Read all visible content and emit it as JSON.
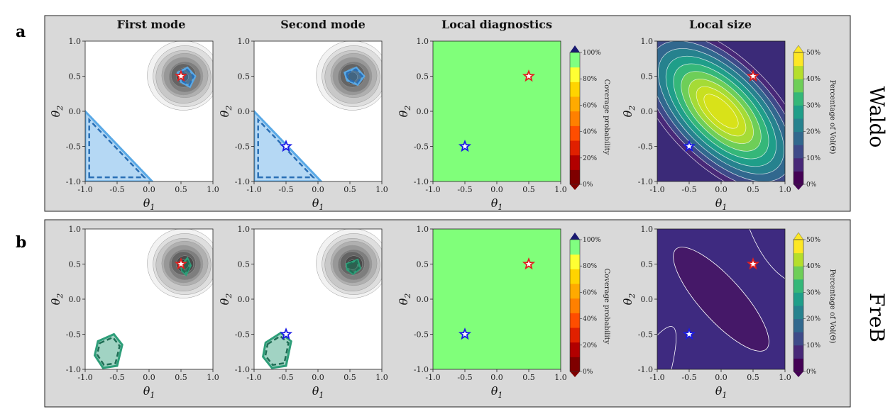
{
  "figure": {
    "column_titles": [
      "First mode",
      "Second mode",
      "Local diagnostics",
      "Local size"
    ],
    "row_letters": [
      "a",
      "b"
    ],
    "methods": [
      "Waldo",
      "FreB"
    ],
    "axis_labels": {
      "x": "θ1",
      "y": "θ2",
      "x_base": "θ",
      "x_sub": "1",
      "y_base": "θ",
      "y_sub": "2"
    },
    "colorbars": {
      "coverage": {
        "title": "Coverage probability",
        "tick_labels": [
          "100%",
          "80%",
          "60%",
          "40%",
          "20%",
          "0%"
        ],
        "colors": [
          "#7f0000",
          "#b20000",
          "#e02000",
          "#ff4d00",
          "#ff8000",
          "#ffaa00",
          "#ffd400",
          "#ffff33",
          "#80ff80",
          "#191970"
        ]
      },
      "size": {
        "title": "Percentage of Vol(Θ)",
        "tick_labels": [
          "50%",
          "40%",
          "30%",
          "20%",
          "10%",
          "0%"
        ],
        "colors": [
          "#440154",
          "#482878",
          "#3e4a89",
          "#31688e",
          "#26828e",
          "#1f9e89",
          "#35b779",
          "#6ece58",
          "#b5de2b",
          "#fde725"
        ]
      }
    }
  },
  "chart_data": [
    {
      "type": "contour",
      "row": "Waldo",
      "panel": "First mode",
      "xlim": [
        -1,
        1
      ],
      "ylim": [
        -1,
        1
      ],
      "xticks": [
        "-1.0",
        "-0.5",
        "0.0",
        "0.5",
        "1.0"
      ],
      "yticks": [
        "1.0",
        "0.5",
        "0.0",
        "-0.5",
        "-1.0"
      ],
      "posterior_center": [
        0.55,
        0.5
      ],
      "true_parameter": [
        0.5,
        0.5
      ],
      "marker_color": "red",
      "region_color": "#5aa9e6",
      "regions": [
        [
          [
            -1,
            -1
          ],
          [
            0.05,
            -1
          ],
          [
            -1,
            0.0
          ]
        ],
        [
          [
            0.45,
            0.55
          ],
          [
            0.6,
            0.62
          ],
          [
            0.72,
            0.5
          ],
          [
            0.64,
            0.35
          ],
          [
            0.5,
            0.42
          ]
        ]
      ]
    },
    {
      "type": "contour",
      "row": "Waldo",
      "panel": "Second mode",
      "xlim": [
        -1,
        1
      ],
      "ylim": [
        -1,
        1
      ],
      "xticks": [
        "-1.0",
        "-0.5",
        "0.0",
        "0.5",
        "1.0"
      ],
      "yticks": [
        "1.0",
        "0.5",
        "0.0",
        "-0.5",
        "-1.0"
      ],
      "posterior_center": [
        0.55,
        0.5
      ],
      "true_parameter": [
        -0.5,
        -0.5
      ],
      "marker_color": "blue",
      "region_color": "#5aa9e6",
      "regions": [
        [
          [
            -1,
            -1
          ],
          [
            0.05,
            -1
          ],
          [
            -1,
            0.0
          ]
        ],
        [
          [
            0.42,
            0.55
          ],
          [
            0.6,
            0.62
          ],
          [
            0.72,
            0.5
          ],
          [
            0.62,
            0.38
          ],
          [
            0.46,
            0.44
          ]
        ]
      ]
    },
    {
      "type": "heatmap",
      "row": "Waldo",
      "panel": "Local diagnostics",
      "xlim": [
        -1,
        1
      ],
      "ylim": [
        -1,
        1
      ],
      "xticks": [
        "-1.0",
        "-0.5",
        "0.0",
        "0.5",
        "1.0"
      ],
      "yticks": [
        "1.0",
        "0.5",
        "0.0",
        "-0.5",
        "-1.0"
      ],
      "coverage_value": 0.95,
      "markers": [
        {
          "x": 0.5,
          "y": 0.5,
          "color": "red"
        },
        {
          "x": -0.5,
          "y": -0.5,
          "color": "blue"
        }
      ]
    },
    {
      "type": "contour",
      "row": "Waldo",
      "panel": "Local size",
      "xlim": [
        -1,
        1
      ],
      "ylim": [
        -1,
        1
      ],
      "xticks": [
        "-1.0",
        "-0.5",
        "0.0",
        "0.5",
        "1.0"
      ],
      "yticks": [
        "1.0",
        "0.5",
        "0.0",
        "-0.5",
        "-1.0"
      ],
      "size_min_corner": 0.02,
      "size_max_diagonal": 0.42,
      "markers": [
        {
          "x": 0.5,
          "y": 0.5,
          "color": "red"
        },
        {
          "x": -0.5,
          "y": -0.5,
          "color": "blue"
        }
      ]
    },
    {
      "type": "contour",
      "row": "FreB",
      "panel": "First mode",
      "xlim": [
        -1,
        1
      ],
      "ylim": [
        -1,
        1
      ],
      "xticks": [
        "-1.0",
        "-0.5",
        "0.0",
        "0.5",
        "1.0"
      ],
      "yticks": [
        "1.0",
        "0.5",
        "0.0",
        "-0.5",
        "-1.0"
      ],
      "posterior_center": [
        0.55,
        0.5
      ],
      "true_parameter": [
        0.5,
        0.5
      ],
      "marker_color": "red",
      "region_color": "#2e9e79",
      "regions": [
        [
          [
            -0.8,
            -0.6
          ],
          [
            -0.55,
            -0.5
          ],
          [
            -0.42,
            -0.65
          ],
          [
            -0.5,
            -0.95
          ],
          [
            -0.72,
            -0.98
          ],
          [
            -0.85,
            -0.8
          ]
        ],
        [
          [
            0.5,
            0.48
          ],
          [
            0.6,
            0.58
          ],
          [
            0.65,
            0.48
          ],
          [
            0.58,
            0.35
          ],
          [
            0.52,
            0.4
          ]
        ]
      ]
    },
    {
      "type": "contour",
      "row": "FreB",
      "panel": "Second mode",
      "xlim": [
        -1,
        1
      ],
      "ylim": [
        -1,
        1
      ],
      "xticks": [
        "-1.0",
        "-0.5",
        "0.0",
        "0.5",
        "1.0"
      ],
      "yticks": [
        "1.0",
        "0.5",
        "0.0",
        "-0.5",
        "-1.0"
      ],
      "posterior_center": [
        0.55,
        0.5
      ],
      "true_parameter": [
        -0.5,
        -0.5
      ],
      "marker_color": "blue",
      "region_color": "#2e9e79",
      "regions": [
        [
          [
            -0.82,
            -0.62
          ],
          [
            -0.58,
            -0.48
          ],
          [
            -0.42,
            -0.6
          ],
          [
            -0.5,
            -0.95
          ],
          [
            -0.72,
            -0.98
          ],
          [
            -0.86,
            -0.82
          ]
        ],
        [
          [
            0.45,
            0.5
          ],
          [
            0.62,
            0.56
          ],
          [
            0.66,
            0.44
          ],
          [
            0.55,
            0.36
          ],
          [
            0.46,
            0.42
          ]
        ]
      ]
    },
    {
      "type": "heatmap",
      "row": "FreB",
      "panel": "Local diagnostics",
      "xlim": [
        -1,
        1
      ],
      "ylim": [
        -1,
        1
      ],
      "xticks": [
        "-1.0",
        "-0.5",
        "0.0",
        "0.5",
        "1.0"
      ],
      "yticks": [
        "1.0",
        "0.5",
        "0.0",
        "-0.5",
        "-1.0"
      ],
      "coverage_value": 0.95,
      "markers": [
        {
          "x": 0.5,
          "y": 0.5,
          "color": "red"
        },
        {
          "x": -0.5,
          "y": -0.5,
          "color": "blue"
        }
      ]
    },
    {
      "type": "contour",
      "row": "FreB",
      "panel": "Local size",
      "xlim": [
        -1,
        1
      ],
      "ylim": [
        -1,
        1
      ],
      "xticks": [
        "-1.0",
        "-0.5",
        "0.0",
        "0.5",
        "1.0"
      ],
      "yticks": [
        "1.0",
        "0.5",
        "0.0",
        "-0.5",
        "-1.0"
      ],
      "size_min_corner": 0.02,
      "size_max_diagonal": 0.08,
      "markers": [
        {
          "x": 0.5,
          "y": 0.5,
          "color": "red"
        },
        {
          "x": -0.5,
          "y": -0.5,
          "color": "blue"
        }
      ]
    }
  ]
}
